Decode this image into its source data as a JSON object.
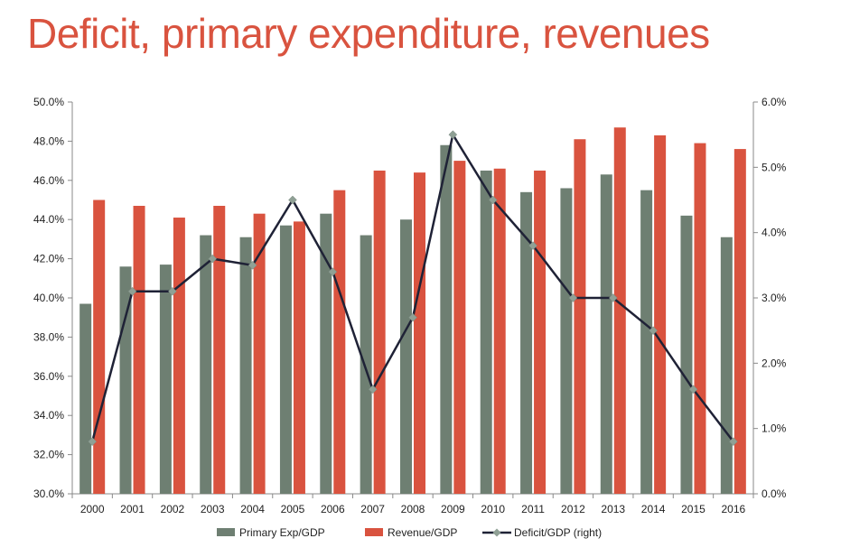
{
  "title": "Deficit, primary expenditure, revenues",
  "colors": {
    "title": "#d9533f",
    "primary_exp": "#6e7f72",
    "revenue": "#d9533f",
    "deficit_line": "#1f2236",
    "deficit_marker": "#8fa095",
    "axis": "#888888"
  },
  "chart_data": {
    "type": "bar",
    "categories": [
      "2000",
      "2001",
      "2002",
      "2003",
      "2004",
      "2005",
      "2006",
      "2007",
      "2008",
      "2009",
      "2010",
      "2011",
      "2012",
      "2013",
      "2014",
      "2015",
      "2016"
    ],
    "series": [
      {
        "name": "Primary Exp/GDP",
        "type": "bar",
        "axis": "left",
        "values": [
          39.7,
          41.6,
          41.7,
          43.2,
          43.1,
          43.7,
          44.3,
          43.2,
          44.0,
          47.8,
          46.5,
          45.4,
          45.6,
          46.3,
          45.5,
          44.2,
          43.1
        ]
      },
      {
        "name": "Revenue/GDP",
        "type": "bar",
        "axis": "left",
        "values": [
          45.0,
          44.7,
          44.1,
          44.7,
          44.3,
          43.9,
          45.5,
          46.5,
          46.4,
          47.0,
          46.6,
          46.5,
          48.1,
          48.7,
          48.3,
          47.9,
          47.6
        ]
      },
      {
        "name": "Deficit/GDP (right)",
        "type": "line",
        "axis": "right",
        "values": [
          0.8,
          3.1,
          3.1,
          3.6,
          3.5,
          4.5,
          3.4,
          1.6,
          2.7,
          5.5,
          4.5,
          3.8,
          3.0,
          3.0,
          2.5,
          1.6,
          0.8
        ]
      }
    ],
    "y_left": {
      "range": [
        30.0,
        50.0
      ],
      "ticks": [
        "30.0%",
        "32.0%",
        "34.0%",
        "36.0%",
        "38.0%",
        "40.0%",
        "42.0%",
        "44.0%",
        "46.0%",
        "48.0%",
        "50.0%"
      ]
    },
    "y_right": {
      "range": [
        0.0,
        6.0
      ],
      "ticks": [
        "0.0%",
        "1.0%",
        "2.0%",
        "3.0%",
        "4.0%",
        "5.0%",
        "6.0%"
      ]
    },
    "xlabel": "",
    "ylabel": "",
    "grid": false,
    "legend_position": "bottom"
  }
}
